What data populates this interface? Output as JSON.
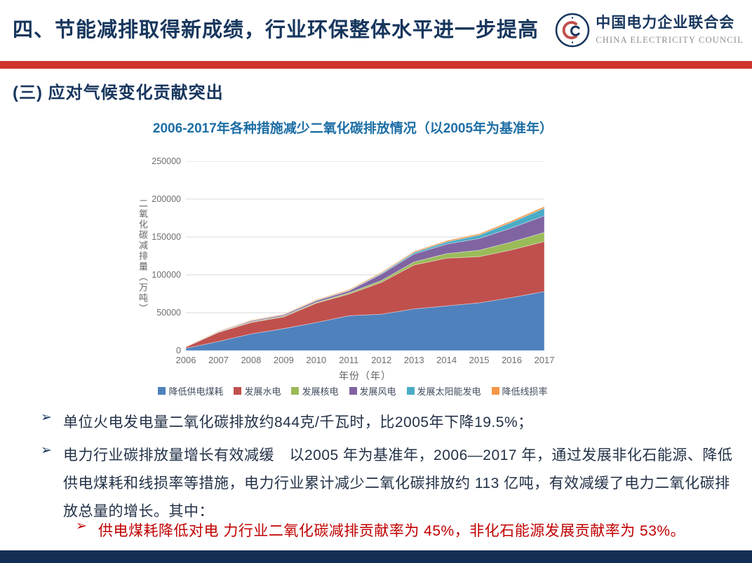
{
  "header": {
    "title": "四、节能减排取得新成绩，行业环保整体水平进一步提高",
    "logo": {
      "org_cn": "中国电力企业联合会",
      "org_en": "CHINA ELECTRICITY COUNCIL"
    }
  },
  "section": {
    "heading": "(三)  应对气候变化贡献突出"
  },
  "chart": {
    "title": "2006-2017年各种措施减少二氧化碳排放情况（以2005年为基准年）"
  },
  "chart_data": {
    "type": "area",
    "stacked": true,
    "title": "2006-2017年各种措施减少二氧化碳排放情况（以2005年为基准年）",
    "x": [
      "2006",
      "2007",
      "2008",
      "2009",
      "2010",
      "2011",
      "2012",
      "2013",
      "2014",
      "2015",
      "2016",
      "2017"
    ],
    "series": [
      {
        "name": "降低供电煤耗",
        "color": "#4F81BD",
        "values": [
          3000,
          12000,
          22000,
          29000,
          37000,
          46000,
          48000,
          55000,
          59000,
          63000,
          70000,
          78000
        ]
      },
      {
        "name": "发展水电",
        "color": "#C0504D",
        "values": [
          1700,
          12000,
          15000,
          15500,
          25500,
          28500,
          42000,
          58000,
          63000,
          61000,
          63000,
          66000
        ]
      },
      {
        "name": "发展核电",
        "color": "#9BBB59",
        "values": [
          200,
          600,
          900,
          1000,
          1200,
          1600,
          2500,
          4000,
          6000,
          8500,
          10500,
          12000
        ]
      },
      {
        "name": "发展风电",
        "color": "#8064A2",
        "values": [
          100,
          600,
          1300,
          1500,
          2200,
          2700,
          8500,
          10500,
          12500,
          15500,
          18500,
          22000
        ]
      },
      {
        "name": "发展太阳能发电",
        "color": "#4BACC6",
        "values": [
          0,
          100,
          200,
          300,
          400,
          500,
          1200,
          2000,
          3000,
          4500,
          7500,
          10000
        ]
      },
      {
        "name": "降低线损率",
        "color": "#F79646",
        "values": [
          300,
          500,
          800,
          900,
          1000,
          1100,
          1200,
          1400,
          1600,
          1800,
          2000,
          2200
        ]
      }
    ],
    "xlabel": "年份（年）",
    "ylabel": "二氧化碳减排量（万吨）",
    "ylim": [
      0,
      250000
    ],
    "ytick_step": 50000,
    "grid": true,
    "gridline_color": "#d9d9d9",
    "legend_position": "bottom"
  },
  "bullets": {
    "marker": "➢",
    "item1": "单位火电发电量二氧化碳排放约844克/千瓦时，比2005年下降19.5%；",
    "item2": "电力行业碳排放量增长有效减缓　以2005 年为基准年，2006—2017 年，通过发展非化石能源、降低供电煤耗和线损率等措施，电力行业累计减少二氧化碳排放约 113 亿吨，有效减缓了电力二氧化碳排放总量的增长。其中：",
    "sub_item": "供电煤耗降低对电 力行业二氧化碳减排贡献率为 45%，非化石能源发展贡献率为 53%。"
  },
  "colors": {
    "accent_red_band": "#CE342D",
    "navy": "#17365D",
    "chart_title_blue": "#1D6EA5",
    "sub_bullet_red": "#C00000",
    "footer_navy": "#132F55"
  }
}
